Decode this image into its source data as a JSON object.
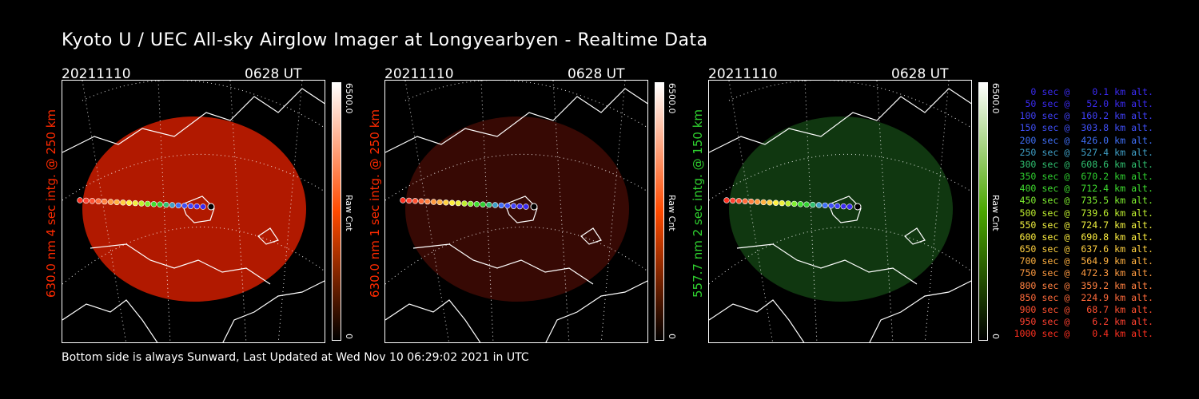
{
  "title": "Kyoto U / UEC All-sky Airglow Imager at Longyearbyen - Realtime Data",
  "panels": [
    {
      "date": "20211110",
      "time": "0628 UT",
      "label": "630.0 nm 4 sec intg. @ 250 km",
      "label_color": "#ff2a00",
      "scale_max": "6500.0",
      "unit": "Raw Cnt",
      "scale_min": "0",
      "glow_color": "#c41c00",
      "glow_opacity": 0.9,
      "bar_top_color": "#ffffff",
      "bar_mid_color": "#ff4a00",
      "bar_bottom_color": "#000000"
    },
    {
      "date": "20211110",
      "time": "0628 UT",
      "label": "630.0 nm 1 sec intg. @ 250 km",
      "label_color": "#ff2a00",
      "scale_max": "6500.0",
      "unit": "Raw Cnt",
      "scale_min": "0",
      "glow_color": "#3a0a04",
      "glow_opacity": 0.95,
      "bar_top_color": "#ffffff",
      "bar_mid_color": "#ff4a00",
      "bar_bottom_color": "#000000"
    },
    {
      "date": "20211110",
      "time": "0628 UT",
      "label": "557.7 nm 2 sec intg. @ 150 km",
      "label_color": "#2fd12f",
      "scale_max": "6500.0",
      "unit": "Raw Cnt",
      "scale_min": "0",
      "glow_color": "#113a11",
      "glow_opacity": 0.95,
      "bar_top_color": "#ffffff",
      "bar_mid_color": "#4aa600",
      "bar_bottom_color": "#000000"
    }
  ],
  "footer": "Bottom side is always Sunward, Last Updated at Wed Nov 10 06:29:02 2021 in UTC",
  "trajectory_legend": [
    {
      "text": "   0 sec @    0.1 km alt.",
      "color": "#3a2af0"
    },
    {
      "text": "  50 sec @   52.0 km alt.",
      "color": "#3a2af0"
    },
    {
      "text": " 100 sec @  160.2 km alt.",
      "color": "#3f3ff6"
    },
    {
      "text": " 150 sec @  303.8 km alt.",
      "color": "#3f4ff6"
    },
    {
      "text": " 200 sec @  426.0 km alt.",
      "color": "#3f6ff6"
    },
    {
      "text": " 250 sec @  527.4 km alt.",
      "color": "#3f9fc6"
    },
    {
      "text": " 300 sec @  608.6 km alt.",
      "color": "#2fbf6f"
    },
    {
      "text": " 350 sec @  670.2 km alt.",
      "color": "#2fcf2f"
    },
    {
      "text": " 400 sec @  712.4 km alt.",
      "color": "#3fdf2f"
    },
    {
      "text": " 450 sec @  735.5 km alt.",
      "color": "#7fef2f"
    },
    {
      "text": " 500 sec @  739.6 km alt.",
      "color": "#bff02f"
    },
    {
      "text": " 550 sec @  724.7 km alt.",
      "color": "#eff03f"
    },
    {
      "text": " 600 sec @  690.8 km alt.",
      "color": "#fff040"
    },
    {
      "text": " 650 sec @  637.6 km alt.",
      "color": "#ffd040"
    },
    {
      "text": " 700 sec @  564.9 km alt.",
      "color": "#ffb040"
    },
    {
      "text": " 750 sec @  472.3 km alt.",
      "color": "#ff9a40"
    },
    {
      "text": " 800 sec @  359.2 km alt.",
      "color": "#ff8040"
    },
    {
      "text": " 850 sec @  224.9 km alt.",
      "color": "#ff6a3a"
    },
    {
      "text": " 900 sec @   68.7 km alt.",
      "color": "#ff5030"
    },
    {
      "text": " 950 sec @    6.2 km alt.",
      "color": "#ff4030"
    },
    {
      "text": "1000 sec @    0.4 km alt.",
      "color": "#ff3020"
    }
  ]
}
